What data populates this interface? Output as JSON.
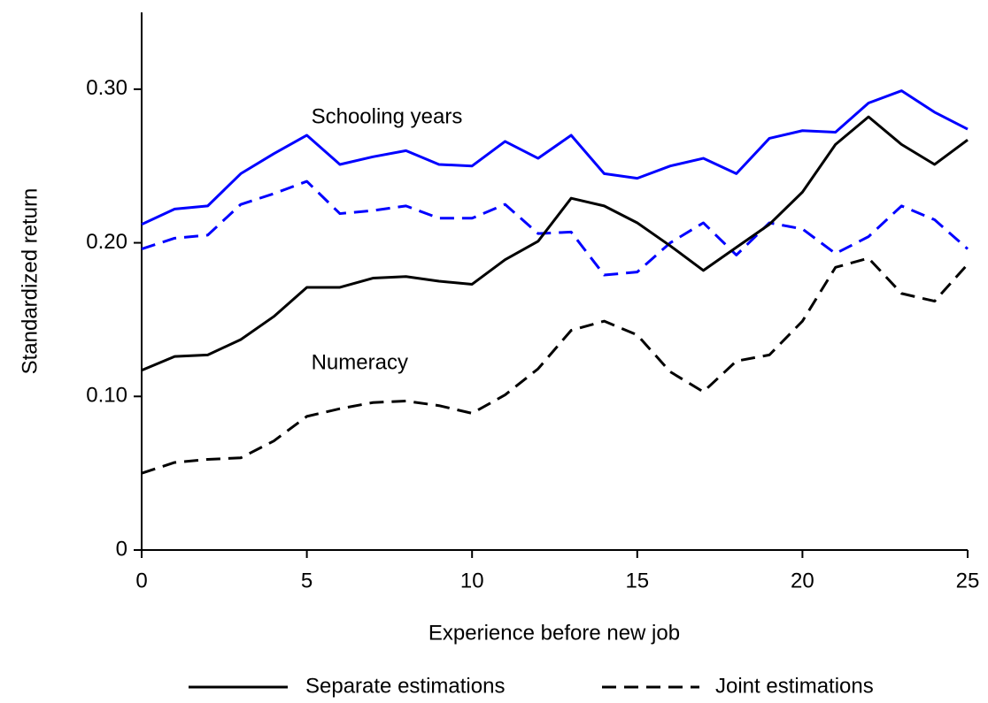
{
  "chart_data": {
    "type": "line",
    "xlabel": "Experience before new job",
    "ylabel": "Standardized return",
    "x": [
      0,
      1,
      2,
      3,
      4,
      5,
      6,
      7,
      8,
      9,
      10,
      11,
      12,
      13,
      14,
      15,
      16,
      17,
      18,
      19,
      20,
      21,
      22,
      23,
      24,
      25
    ],
    "xlim": [
      0,
      25
    ],
    "xticks": [
      0,
      5,
      10,
      15,
      20,
      25
    ],
    "ylim": [
      0,
      0.35
    ],
    "yticks": [
      0,
      {
        "value": 0.1,
        "label": "0.10"
      },
      {
        "value": 0.2,
        "label": "0.20"
      },
      {
        "value": 0.3,
        "label": "0.30"
      }
    ],
    "legend": {
      "separate": "Separate estimations",
      "joint": "Joint estimations"
    },
    "variables": [
      {
        "label": "Schooling years",
        "color": "#0000ff",
        "separate": [
          0.212,
          0.222,
          0.224,
          0.245,
          0.258,
          0.27,
          0.251,
          0.256,
          0.26,
          0.251,
          0.25,
          0.266,
          0.255,
          0.27,
          0.245,
          0.242,
          0.25,
          0.255,
          0.245,
          0.268,
          0.273,
          0.272,
          0.291,
          0.299,
          0.285,
          0.274
        ],
        "joint": [
          0.196,
          0.203,
          0.205,
          0.225,
          0.232,
          0.24,
          0.219,
          0.221,
          0.224,
          0.216,
          0.216,
          0.225,
          0.206,
          0.207,
          0.179,
          0.181,
          0.2,
          0.213,
          0.192,
          0.213,
          0.209,
          0.193,
          0.204,
          0.224,
          0.215,
          0.196
        ]
      },
      {
        "label": "Numeracy",
        "color": "#000000",
        "separate": [
          0.117,
          0.126,
          0.127,
          0.137,
          0.152,
          0.171,
          0.171,
          0.177,
          0.178,
          0.175,
          0.173,
          0.189,
          0.201,
          0.229,
          0.224,
          0.213,
          0.198,
          0.182,
          0.197,
          0.212,
          0.233,
          0.264,
          0.282,
          0.264,
          0.251,
          0.267
        ],
        "joint": [
          0.05,
          0.057,
          0.059,
          0.06,
          0.071,
          0.087,
          0.092,
          0.096,
          0.097,
          0.094,
          0.089,
          0.101,
          0.118,
          0.143,
          0.149,
          0.14,
          0.116,
          0.103,
          0.123,
          0.127,
          0.149,
          0.184,
          0.19,
          0.167,
          0.162,
          0.186
        ]
      }
    ]
  }
}
